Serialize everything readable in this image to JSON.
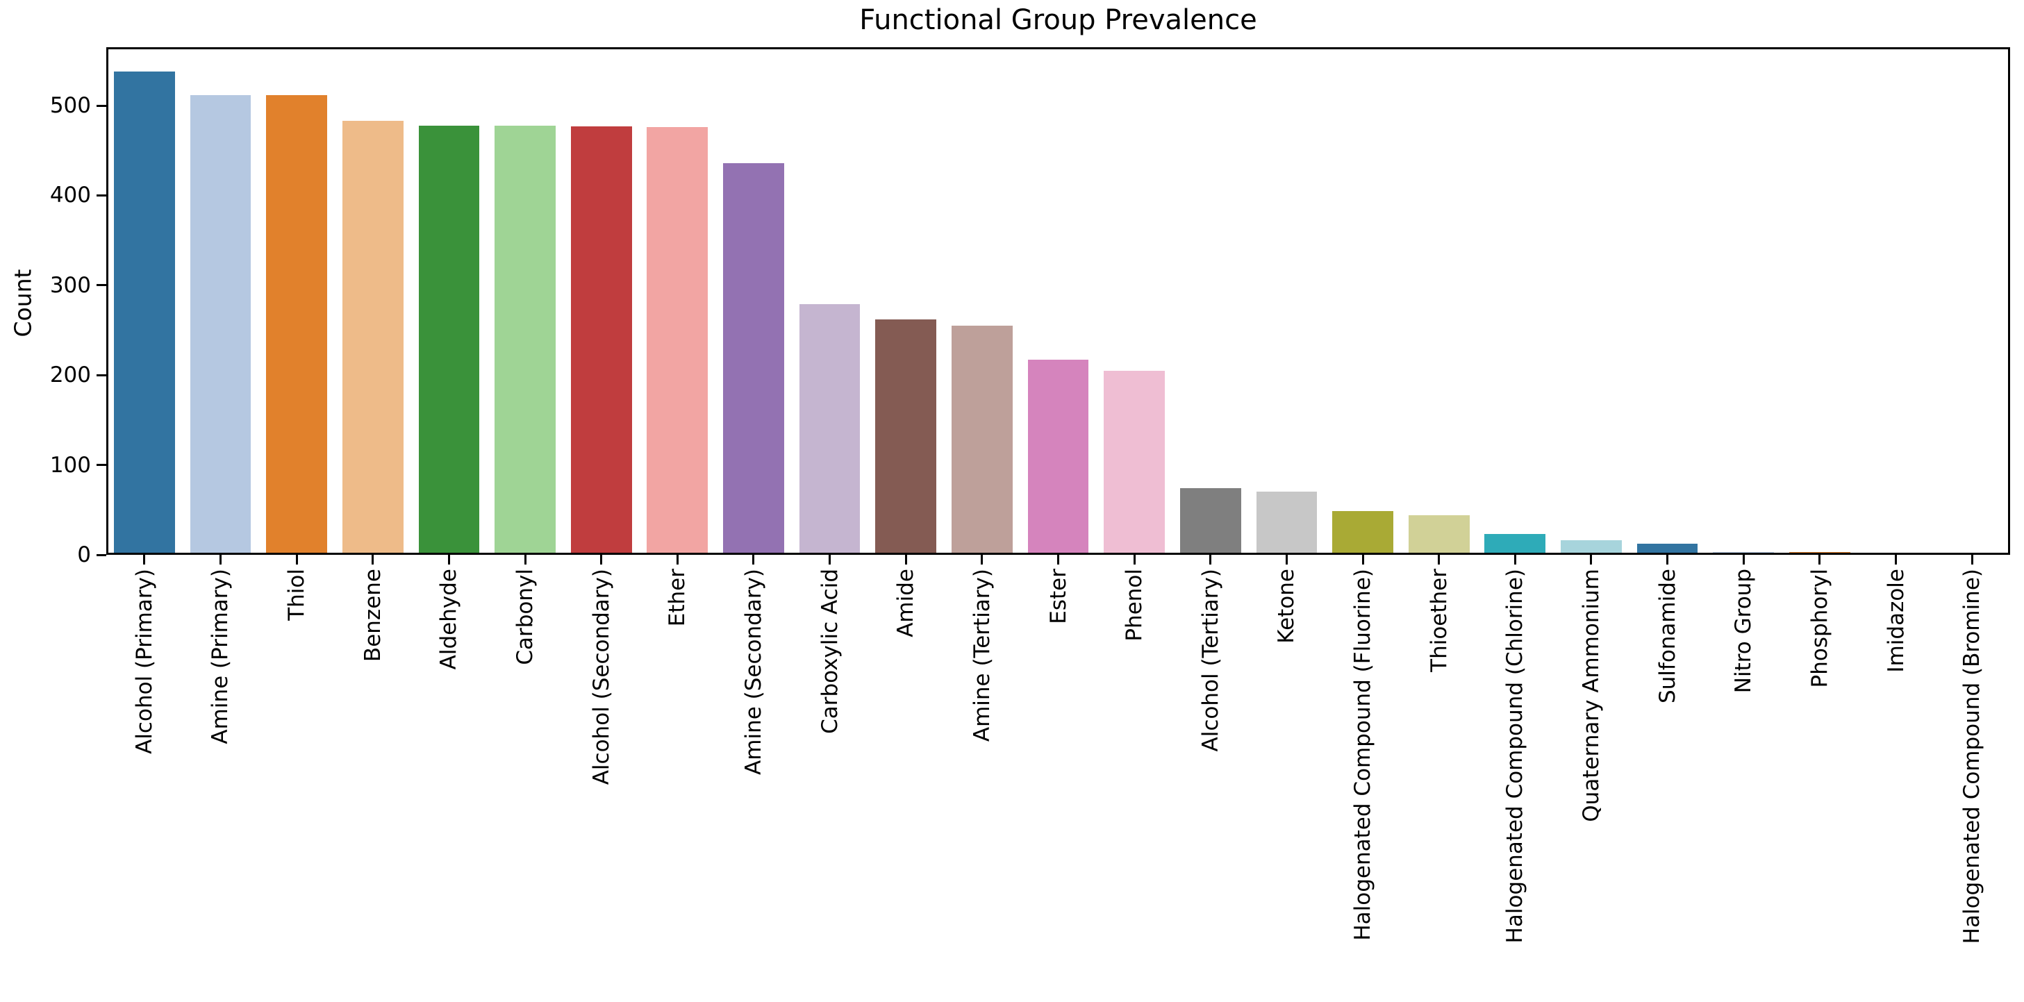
{
  "chart_data": {
    "type": "bar",
    "title": "Functional Group Prevalence",
    "xlabel": "",
    "ylabel": "Count",
    "ylim": [
      0,
      565
    ],
    "yticks": [
      0,
      100,
      200,
      300,
      400,
      500
    ],
    "grid": false,
    "legend": false,
    "bar_width_fraction": 0.8,
    "categories": [
      "Alcohol (Primary)",
      "Amine (Primary)",
      "Thiol",
      "Benzene",
      "Aldehyde",
      "Carbonyl",
      "Alcohol (Secondary)",
      "Ether",
      "Amine (Secondary)",
      "Carboxylic Acid",
      "Amide",
      "Amine (Tertiary)",
      "Ester",
      "Phenol",
      "Alcohol (Tertiary)",
      "Ketone",
      "Halogenated Compound (Fluorine)",
      "Thioether",
      "Halogenated Compound (Chlorine)",
      "Quaternary Ammonium",
      "Sulfonamide",
      "Nitro Group",
      "Phosphoryl",
      "Imidazole",
      "Halogenated Compound (Bromine)"
    ],
    "values": [
      538,
      512,
      512,
      483,
      478,
      478,
      477,
      476,
      436,
      279,
      262,
      255,
      217,
      205,
      74,
      70,
      49,
      44,
      23,
      16,
      12,
      3,
      3,
      1,
      1
    ],
    "bar_colors": [
      "#3274a1",
      "#b5c8e1",
      "#e1812c",
      "#eebb89",
      "#3a923a",
      "#9fd495",
      "#c03d3e",
      "#f2a5a3",
      "#9372b2",
      "#c5b5d0",
      "#845b53",
      "#bea09a",
      "#d584bd",
      "#efbed3",
      "#7f7f7f",
      "#c7c7c7",
      "#a9aa35",
      "#d1d197",
      "#2eabb8",
      "#a7d4dc",
      "#3274a1",
      "#b5c8e1",
      "#e1812c",
      "#eebb89",
      "#3a923a"
    ],
    "axis": {
      "spine_color": "#000000",
      "tick_color": "#000000",
      "text_color": "#000000",
      "background": "#ffffff"
    }
  }
}
